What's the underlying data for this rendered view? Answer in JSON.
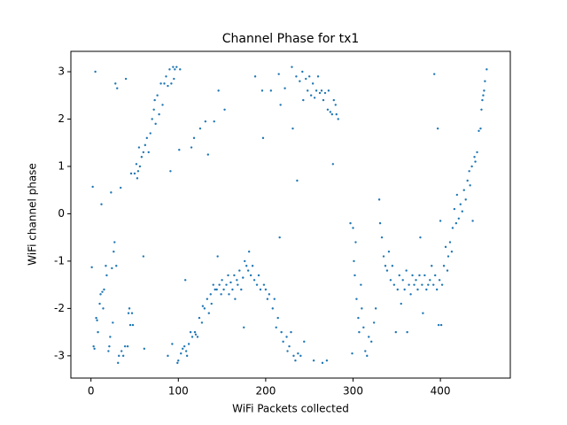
{
  "chart_data": {
    "type": "scatter",
    "title": "Channel Phase for tx1",
    "x_label": "WiFi Packets collected",
    "y_label": "WiFi channel phase",
    "color": "#1f77b4",
    "xlim": [
      -23,
      480
    ],
    "ylim": [
      -3.47,
      3.43
    ],
    "xticks": [
      0,
      100,
      200,
      300,
      400
    ],
    "yticks": [
      -3,
      -2,
      -1,
      0,
      1,
      2,
      3
    ],
    "x": [
      1,
      2,
      3,
      4,
      5,
      6,
      7,
      8,
      10,
      11,
      12,
      13,
      14,
      15,
      17,
      18,
      20,
      21,
      22,
      23,
      24,
      25,
      26,
      27,
      28,
      29,
      30,
      31,
      32,
      34,
      35,
      37,
      39,
      40,
      42,
      43,
      44,
      45,
      46,
      47,
      48,
      50,
      52,
      53,
      54,
      55,
      56,
      58,
      60,
      60,
      61,
      62,
      64,
      66,
      68,
      70,
      72,
      73,
      74,
      76,
      78,
      80,
      82,
      84,
      86,
      88,
      88,
      90,
      91,
      92,
      93,
      94,
      95,
      96,
      98,
      99,
      100,
      101,
      102,
      103,
      105,
      107,
      108,
      109,
      110,
      112,
      114,
      115,
      116,
      118,
      119,
      120,
      122,
      124,
      125,
      127,
      128,
      130,
      131,
      133,
      134,
      135,
      137,
      138,
      140,
      141,
      142,
      144,
      145,
      146,
      147,
      149,
      150,
      152,
      153,
      155,
      157,
      158,
      160,
      162,
      164,
      165,
      167,
      168,
      170,
      172,
      174,
      175,
      176,
      178,
      180,
      181,
      183,
      185,
      187,
      188,
      190,
      192,
      194,
      196,
      197,
      198,
      200,
      202,
      204,
      206,
      208,
      210,
      212,
      214,
      215,
      216,
      217,
      218,
      220,
      222,
      224,
      225,
      227,
      229,
      230,
      231,
      232,
      234,
      235,
      236,
      237,
      239,
      240,
      242,
      243,
      244,
      246,
      248,
      250,
      252,
      254,
      255,
      256,
      258,
      260,
      262,
      264,
      265,
      266,
      268,
      270,
      271,
      272,
      274,
      276,
      277,
      278,
      280,
      281,
      283,
      297,
      299,
      300,
      301,
      302,
      303,
      304,
      306,
      307,
      309,
      310,
      312,
      314,
      316,
      318,
      321,
      324,
      326,
      330,
      331,
      333,
      335,
      337,
      339,
      341,
      343,
      345,
      347,
      349,
      351,
      353,
      355,
      357,
      359,
      361,
      362,
      364,
      366,
      368,
      370,
      372,
      374,
      376,
      377,
      379,
      380,
      382,
      384,
      386,
      388,
      390,
      392,
      393,
      394,
      396,
      397,
      398,
      399,
      400,
      401,
      402,
      404,
      406,
      408,
      409,
      411,
      413,
      414,
      416,
      418,
      419,
      421,
      423,
      425,
      427,
      429,
      431,
      433,
      434,
      436,
      437,
      439,
      440,
      442,
      444,
      446,
      447,
      448,
      449,
      450,
      451,
      453
    ],
    "values": [
      -1.13,
      0.57,
      -2.8,
      -2.85,
      3.0,
      -2.2,
      -2.25,
      -2.5,
      -1.9,
      -1.7,
      0.2,
      -1.65,
      -2.0,
      -1.6,
      -1.1,
      -1.3,
      -2.9,
      -2.8,
      -2.6,
      0.45,
      -1.15,
      -2.3,
      -0.8,
      -0.6,
      2.75,
      -1.1,
      2.65,
      -3.15,
      -3.0,
      0.55,
      -2.9,
      -3.0,
      -2.8,
      2.85,
      -2.8,
      -2.1,
      -2.0,
      -2.35,
      0.85,
      -2.1,
      -2.35,
      0.85,
      1.05,
      0.75,
      0.9,
      1.4,
      1.0,
      1.2,
      -0.9,
      1.3,
      -2.85,
      1.45,
      1.6,
      1.3,
      1.7,
      2.0,
      2.2,
      2.4,
      1.9,
      2.5,
      2.1,
      2.75,
      2.3,
      2.75,
      2.9,
      2.7,
      -3.0,
      3.05,
      0.9,
      2.75,
      -2.75,
      3.1,
      2.85,
      3.05,
      3.1,
      -3.15,
      -3.1,
      1.35,
      3.05,
      -2.95,
      -2.85,
      -2.8,
      -1.4,
      -2.9,
      -3.0,
      -2.75,
      -2.5,
      1.4,
      -2.6,
      1.6,
      -2.5,
      -2.55,
      -2.6,
      -2.2,
      1.8,
      -2.3,
      -1.95,
      -2.0,
      1.95,
      -1.8,
      1.25,
      -2.1,
      -1.7,
      -1.9,
      -1.5,
      1.95,
      -1.6,
      -1.6,
      -0.9,
      2.6,
      -1.5,
      -1.7,
      -1.4,
      -1.6,
      2.2,
      -1.5,
      -1.3,
      -1.7,
      -1.45,
      -1.6,
      -1.3,
      -1.8,
      -1.4,
      -1.5,
      -1.2,
      -1.6,
      -1.35,
      -2.4,
      -1.0,
      -1.1,
      -1.2,
      -0.8,
      -1.3,
      -1.1,
      -1.4,
      2.9,
      -1.5,
      -1.3,
      -1.6,
      2.6,
      1.6,
      -1.5,
      -1.6,
      -1.8,
      -1.7,
      2.6,
      -2.0,
      -1.8,
      -2.4,
      -2.2,
      2.95,
      -0.5,
      2.3,
      -2.5,
      -2.7,
      2.65,
      -2.6,
      -2.9,
      -2.8,
      -2.5,
      3.1,
      1.8,
      -3.0,
      -3.1,
      2.9,
      0.7,
      -2.95,
      2.8,
      -3.0,
      3.0,
      2.4,
      -2.7,
      2.85,
      2.6,
      2.9,
      2.5,
      2.75,
      -3.1,
      2.45,
      2.6,
      2.9,
      2.55,
      2.6,
      -3.15,
      2.4,
      2.55,
      -3.1,
      2.2,
      2.6,
      2.15,
      2.1,
      1.05,
      2.4,
      2.3,
      2.1,
      2.0,
      -0.2,
      -2.95,
      -0.3,
      -1.0,
      -1.3,
      -0.6,
      -1.8,
      -2.2,
      -2.5,
      -1.5,
      -2.0,
      -2.4,
      -2.9,
      -3.0,
      -2.6,
      -2.7,
      -2.3,
      -2.0,
      0.3,
      -0.2,
      -0.5,
      -0.9,
      -1.1,
      -1.2,
      -0.8,
      -1.4,
      -1.1,
      -1.5,
      -2.5,
      -1.6,
      -1.3,
      -1.9,
      -1.4,
      -1.6,
      -1.2,
      -2.5,
      -1.5,
      -1.7,
      -1.3,
      -1.5,
      -1.4,
      -1.6,
      -1.3,
      -0.5,
      -1.5,
      -2.1,
      -1.3,
      -1.6,
      -1.5,
      -1.4,
      -1.1,
      -1.5,
      2.95,
      -1.3,
      -1.6,
      1.8,
      -2.35,
      -1.4,
      -0.15,
      -2.35,
      -1.5,
      -1.1,
      -0.7,
      -1.2,
      -0.9,
      -0.6,
      -0.8,
      -0.3,
      0.1,
      -0.2,
      0.4,
      -0.1,
      0.2,
      0.05,
      0.5,
      0.3,
      0.7,
      0.9,
      0.6,
      1.0,
      -0.15,
      1.2,
      1.1,
      1.3,
      1.75,
      1.8,
      2.2,
      2.4,
      2.5,
      2.6,
      2.8,
      3.05
    ]
  }
}
